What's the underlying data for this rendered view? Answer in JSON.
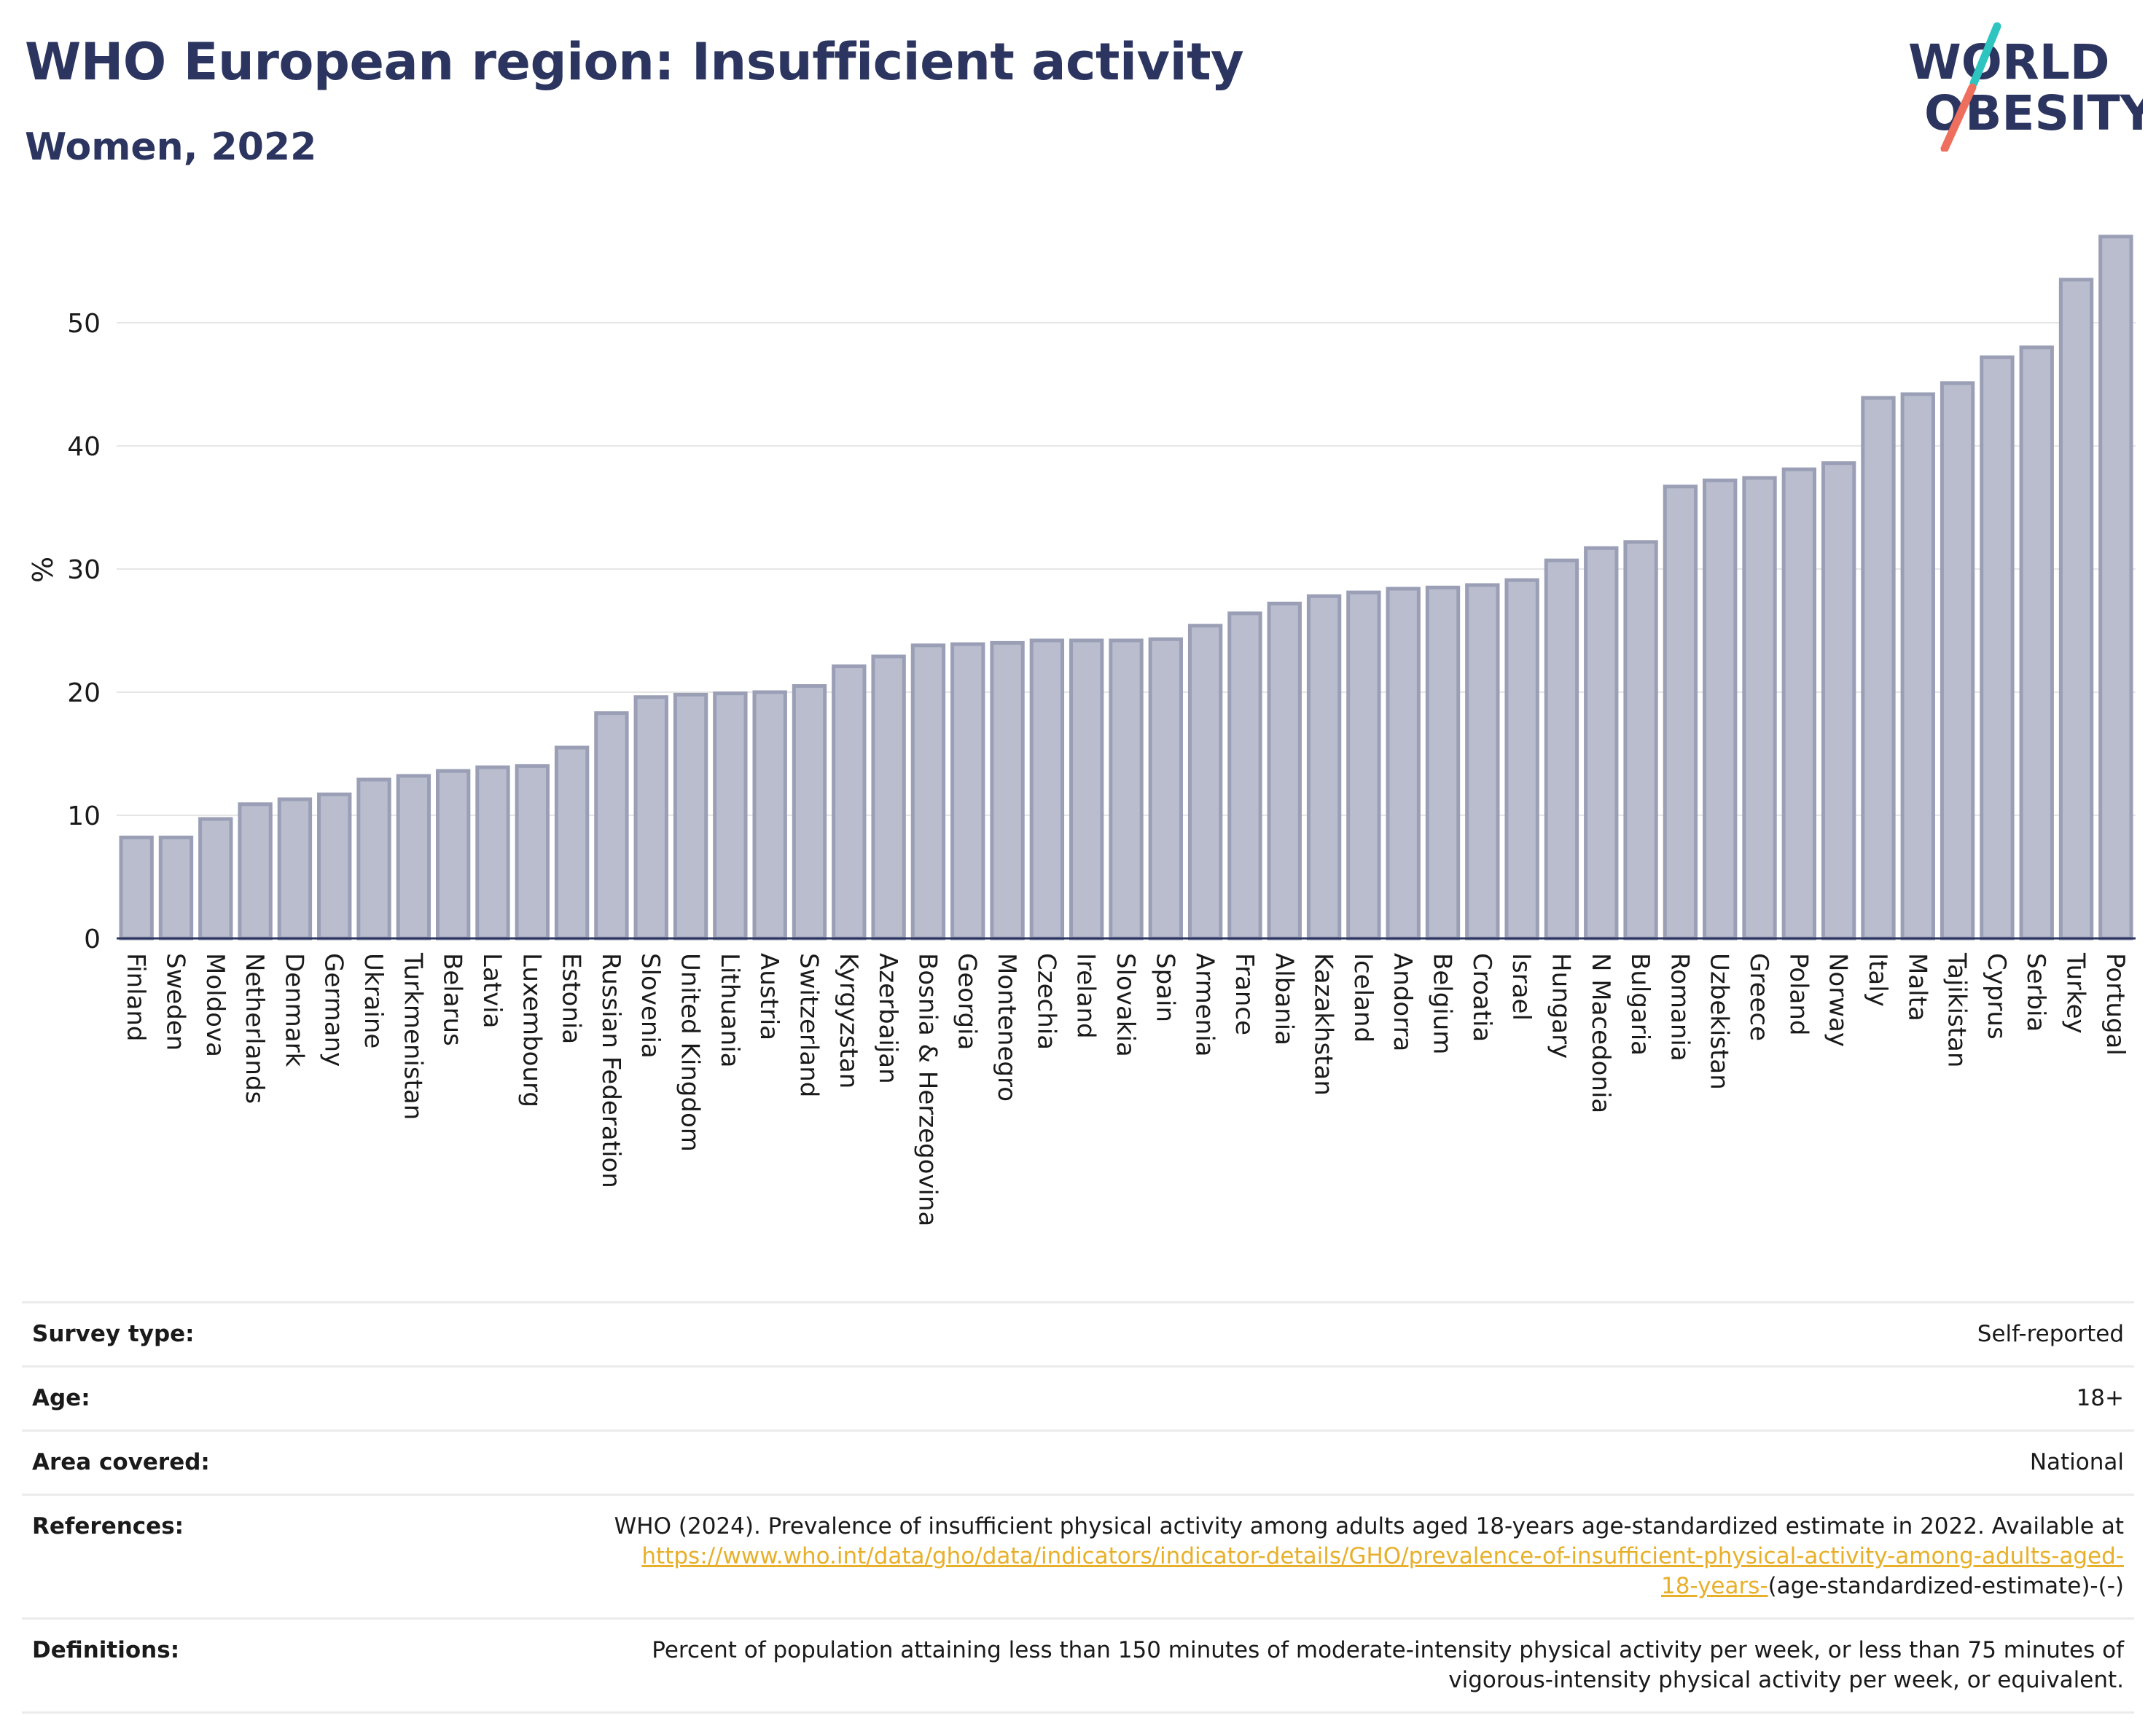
{
  "header": {
    "title": "WHO European region: Insufficient activity",
    "subtitle": "Women, 2022"
  },
  "logo": {
    "line1": "WORLD",
    "line2": "OBESITY",
    "slash_color_1": "#2ec4c0",
    "slash_color_2": "#ef6f5e"
  },
  "chart_data": {
    "type": "bar",
    "ylabel": "%",
    "ylim": [
      0,
      58
    ],
    "yticks": [
      0,
      10,
      20,
      30,
      40,
      50
    ],
    "grid": true,
    "bar_color": "#b9bdce",
    "bar_border_color": "#9a9fb6",
    "categories": [
      "Finland",
      "Sweden",
      "Moldova",
      "Netherlands",
      "Denmark",
      "Germany",
      "Ukraine",
      "Turkmenistan",
      "Belarus",
      "Latvia",
      "Luxembourg",
      "Estonia",
      "Russian Federation",
      "Slovenia",
      "United Kingdom",
      "Lithuania",
      "Austria",
      "Switzerland",
      "Kyrgyzstan",
      "Azerbaijan",
      "Bosnia & Herzegovina",
      "Georgia",
      "Montenegro",
      "Czechia",
      "Ireland",
      "Slovakia",
      "Spain",
      "Armenia",
      "France",
      "Albania",
      "Kazakhstan",
      "Iceland",
      "Andorra",
      "Belgium",
      "Croatia",
      "Israel",
      "Hungary",
      "N Macedonia",
      "Bulgaria",
      "Romania",
      "Uzbekistan",
      "Greece",
      "Poland",
      "Norway",
      "Italy",
      "Malta",
      "Tajikistan",
      "Cyprus",
      "Serbia",
      "Turkey",
      "Portugal"
    ],
    "values": [
      8.2,
      8.2,
      9.7,
      10.9,
      11.3,
      11.7,
      12.9,
      13.2,
      13.6,
      13.9,
      14.0,
      15.5,
      18.3,
      19.6,
      19.8,
      19.9,
      20.0,
      20.5,
      22.1,
      22.9,
      23.8,
      23.9,
      24.0,
      24.2,
      24.2,
      24.2,
      24.3,
      25.4,
      26.4,
      27.2,
      27.8,
      28.1,
      28.4,
      28.5,
      28.7,
      29.1,
      30.7,
      31.7,
      32.2,
      36.7,
      37.2,
      37.4,
      38.1,
      38.6,
      43.9,
      44.2,
      45.1,
      47.2,
      48.0,
      53.5,
      57.0
    ]
  },
  "info": {
    "survey_type_label": "Survey type:",
    "survey_type_value": "Self-reported",
    "age_label": "Age:",
    "age_value": "18+",
    "area_label": "Area covered:",
    "area_value": "National",
    "references_label": "References:",
    "references_text": "WHO (2024). Prevalence of insufficient physical activity among adults aged 18-years age-standardized estimate in 2022. Available at",
    "references_link_1": "https://www.who.int/data/gho/data/indicators/indicator-details/GHO/prevalence-of-insufficient-physical-activity-among-adults-aged-",
    "references_link_2": "18-years-",
    "references_suffix": "(age-standardized-estimate)-(-)",
    "definitions_label": "Definitions:",
    "definitions_line_1": "Percent of population attaining less than 150 minutes of moderate-intensity physical activity per week, or less than 75 minutes of",
    "definitions_line_2": "vigorous-intensity physical activity per week, or equivalent."
  }
}
